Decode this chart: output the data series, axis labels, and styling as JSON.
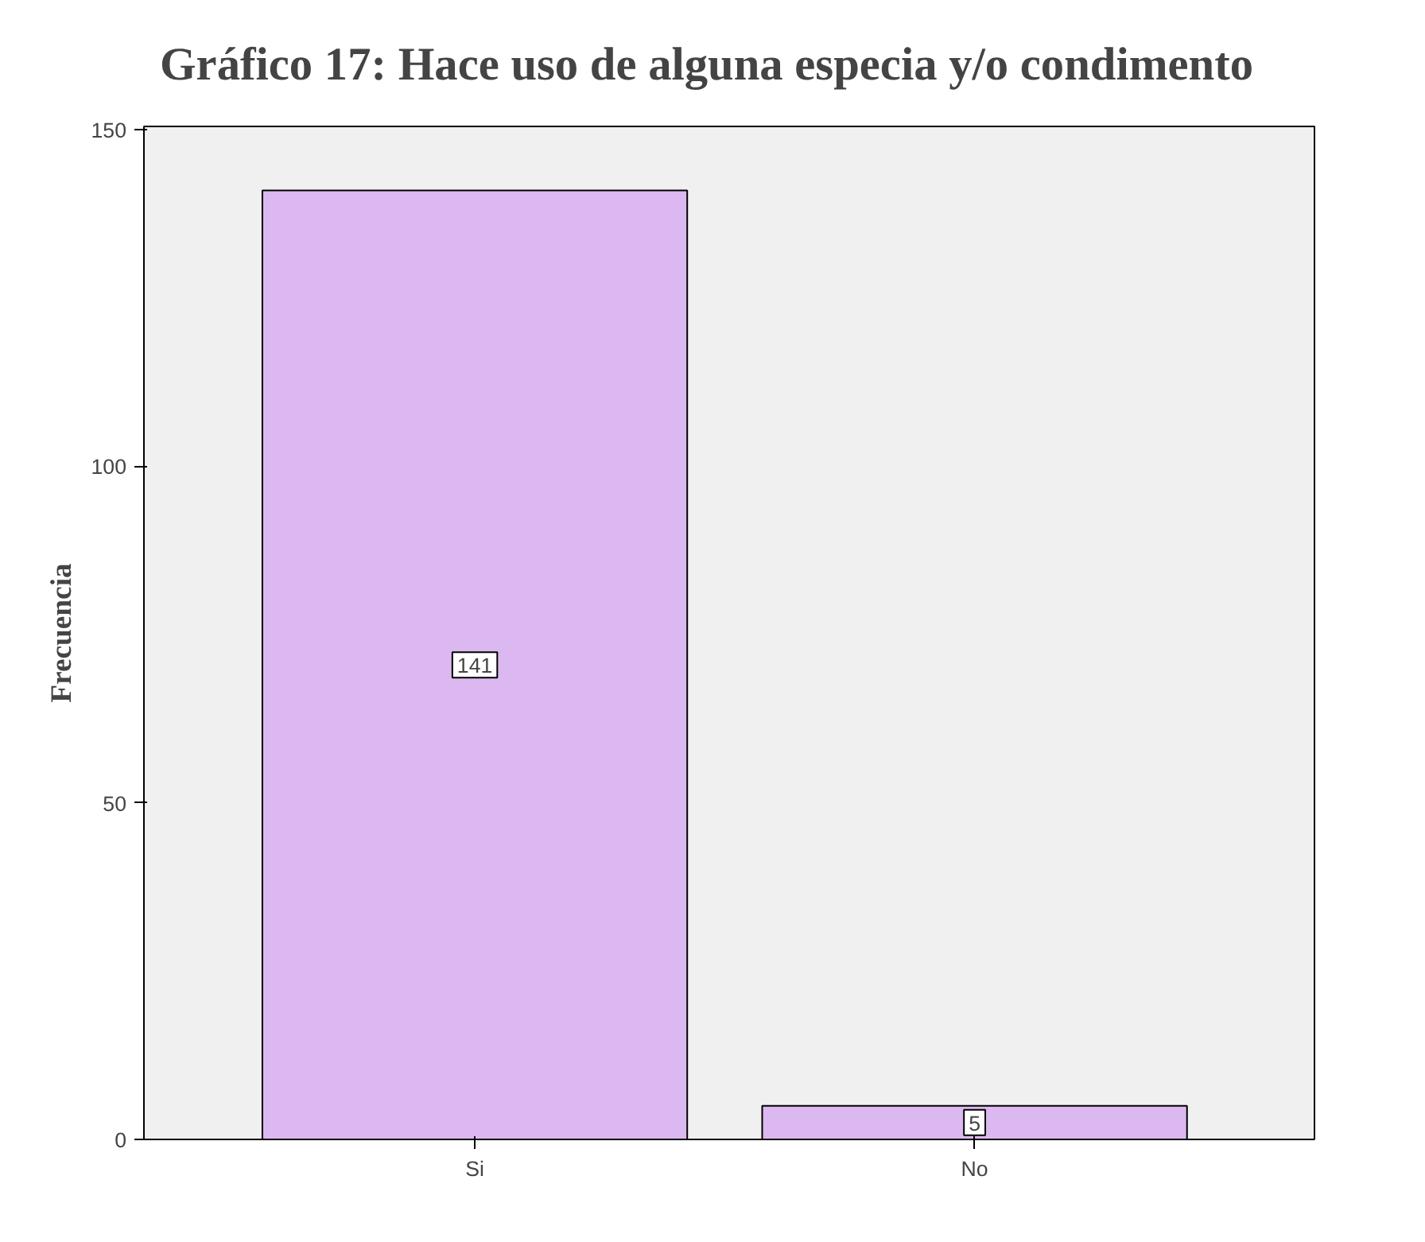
{
  "chart_data": {
    "type": "bar",
    "title": "Gráfico 17: Hace uso de alguna especia y/o condimento",
    "ylabel": "Frecuencia",
    "categories": [
      "Si",
      "No"
    ],
    "values": [
      141,
      5
    ],
    "color": "#dcb8f0",
    "data_labels": true,
    "ylim": [
      0,
      150.5
    ],
    "yticks": [
      0,
      50,
      100,
      150
    ],
    "grid": false
  }
}
